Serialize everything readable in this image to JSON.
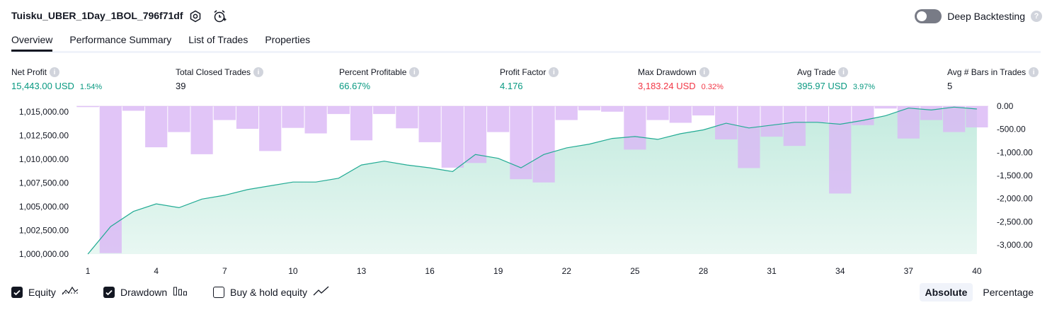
{
  "header": {
    "title": "Tuisku_UBER_1Day_1BOL_796f71df",
    "settings_icon": "gear-icon",
    "alert_icon": "alarm-clock-add-icon",
    "deep_backtesting_label": "Deep Backtesting",
    "deep_backtesting_enabled": false
  },
  "tabs": [
    {
      "label": "Overview",
      "active": true
    },
    {
      "label": "Performance Summary",
      "active": false
    },
    {
      "label": "List of Trades",
      "active": false
    },
    {
      "label": "Properties",
      "active": false
    }
  ],
  "metrics": {
    "net_profit": {
      "label": "Net Profit",
      "value": "15,443.00 USD",
      "pct": "1.54%"
    },
    "total_closed_trades": {
      "label": "Total Closed Trades",
      "value": "39"
    },
    "percent_profitable": {
      "label": "Percent Profitable",
      "value": "66.67%"
    },
    "profit_factor": {
      "label": "Profit Factor",
      "value": "4.176"
    },
    "max_drawdown": {
      "label": "Max Drawdown",
      "value": "3,183.24 USD",
      "pct": "0.32%"
    },
    "avg_trade": {
      "label": "Avg Trade",
      "value": "395.97 USD",
      "pct": "3.97%"
    },
    "avg_bars": {
      "label": "Avg # Bars in Trades",
      "value": "5"
    }
  },
  "chart_data": {
    "type": "area",
    "x": [
      1,
      2,
      3,
      4,
      5,
      6,
      7,
      8,
      9,
      10,
      11,
      12,
      13,
      14,
      15,
      16,
      17,
      18,
      19,
      20,
      21,
      22,
      23,
      24,
      25,
      26,
      27,
      28,
      29,
      30,
      31,
      32,
      33,
      34,
      35,
      36,
      37,
      38,
      39,
      40
    ],
    "x_ticks": [
      "1",
      "4",
      "7",
      "10",
      "13",
      "16",
      "19",
      "22",
      "25",
      "28",
      "31",
      "34",
      "37",
      "40"
    ],
    "series": [
      {
        "name": "Equity",
        "axis": "left",
        "color": "#22ab94",
        "fill": "#d3efe6",
        "values": [
          1000000,
          1002900,
          1004500,
          1005300,
          1004900,
          1005800,
          1006200,
          1006800,
          1007200,
          1007600,
          1007600,
          1008000,
          1009400,
          1009800,
          1009400,
          1009100,
          1008700,
          1010500,
          1010100,
          1009100,
          1010500,
          1011200,
          1011600,
          1012200,
          1012400,
          1012100,
          1012700,
          1013100,
          1013800,
          1013300,
          1013600,
          1013900,
          1013900,
          1013700,
          1014100,
          1014600,
          1015400,
          1015200,
          1015500,
          1015300
        ]
      },
      {
        "name": "Drawdown",
        "axis": "right",
        "color": "#ce93d8",
        "fill": "#e1bee7",
        "values": [
          -20,
          -3180,
          -100,
          -890,
          -560,
          -1040,
          -300,
          -490,
          -970,
          -470,
          -590,
          -170,
          -740,
          -170,
          -480,
          -780,
          -1330,
          -1230,
          -560,
          -1580,
          -1650,
          -300,
          -90,
          -120,
          -940,
          -300,
          -360,
          -200,
          -720,
          -1340,
          -660,
          -860,
          -350,
          -1890,
          -410,
          -50,
          -700,
          -300,
          -560,
          -460
        ]
      }
    ],
    "y_left": {
      "ticks": [
        "1,000,000.00",
        "1,002,500.00",
        "1,005,000.00",
        "1,007,500.00",
        "1,010,000.00",
        "1,012,500.00",
        "1,015,000.00"
      ],
      "ylim": [
        1000000,
        1015600
      ]
    },
    "y_right": {
      "ticks": [
        "0.00",
        "-500.00",
        "-1,000.00",
        "-1,500.00",
        "-2,000.00",
        "-2,500.00",
        "-3,000.00"
      ],
      "ylim": [
        -3200,
        0
      ]
    }
  },
  "legend": {
    "equity": {
      "label": "Equity",
      "checked": true,
      "icon": "equity-line-icon"
    },
    "drawdown": {
      "label": "Drawdown",
      "checked": true,
      "icon": "bar-chart-icon"
    },
    "buy_hold": {
      "label": "Buy & hold equity",
      "checked": false,
      "icon": "trend-line-icon"
    }
  },
  "mode": {
    "absolute": "Absolute",
    "percentage": "Percentage",
    "selected": "Absolute"
  }
}
